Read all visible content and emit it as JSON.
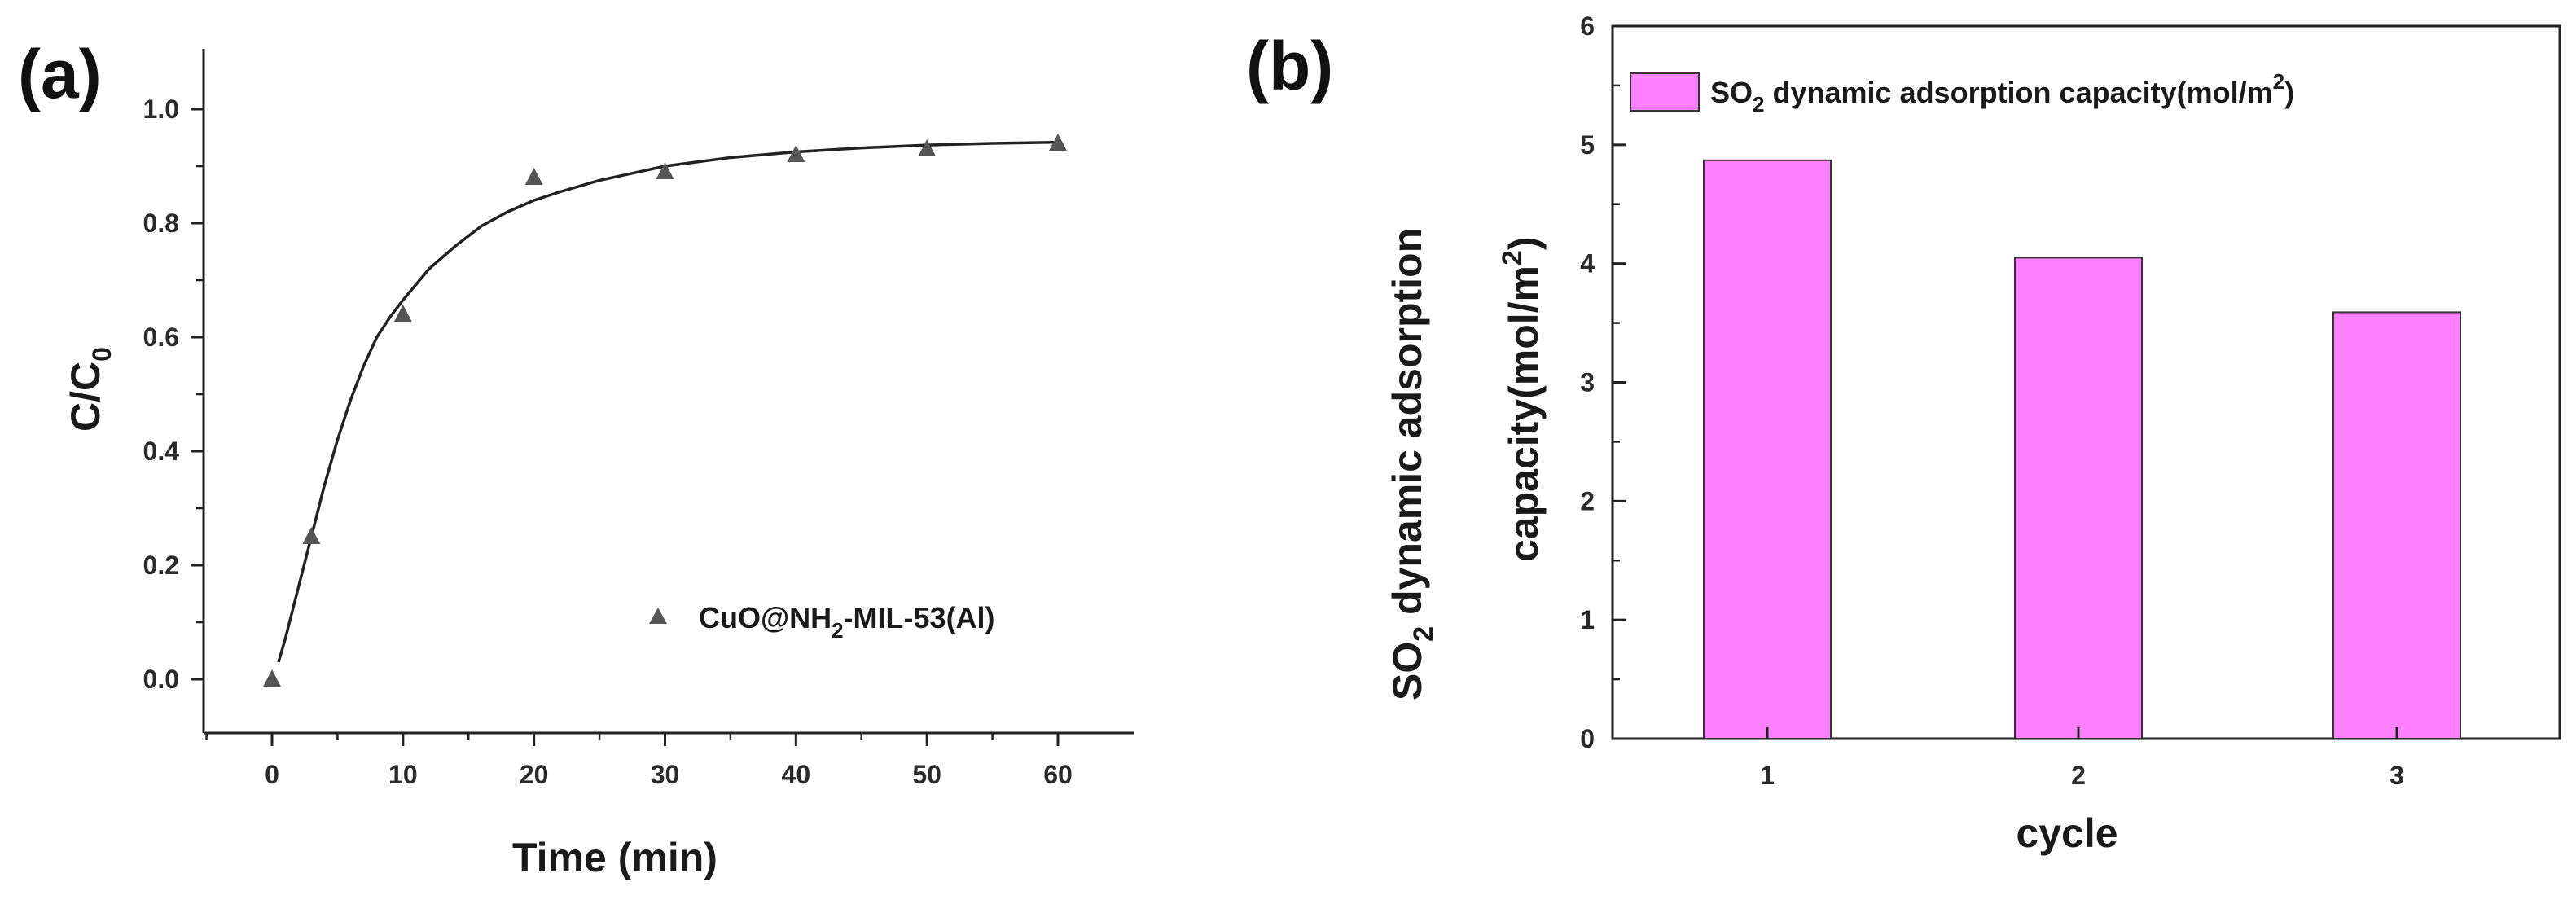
{
  "chart_data": [
    {
      "panel": "(a)",
      "type": "scatter",
      "xlabel": "Time (min)",
      "ylabel_main": "C/C",
      "ylabel_sub": "0",
      "xlim": [
        -5,
        65
      ],
      "ylim": [
        -0.1,
        1.1
      ],
      "xticks": [
        "0",
        "10",
        "20",
        "30",
        "40",
        "50",
        "60"
      ],
      "yticks": [
        "0.0",
        "0.2",
        "0.4",
        "0.6",
        "0.8",
        "1.0"
      ],
      "series": [
        {
          "name_pre": "CuO@NH",
          "name_sub": "2",
          "name_post": "-MIL-53(Al)",
          "marker": "triangle",
          "color": "#555555",
          "x": [
            0,
            3,
            10,
            20,
            30,
            40,
            50,
            60
          ],
          "y": [
            0.0,
            0.25,
            0.64,
            0.88,
            0.89,
            0.92,
            0.93,
            0.94
          ]
        }
      ],
      "fit_curve": {
        "description": "smooth fitted line",
        "x": [
          0.5,
          1,
          2,
          3,
          4,
          5,
          6,
          7,
          8,
          9,
          10,
          12,
          14,
          16,
          18,
          20,
          22,
          25,
          30,
          35,
          40,
          45,
          50,
          55,
          60
        ],
        "y": [
          0.03,
          0.07,
          0.16,
          0.25,
          0.34,
          0.42,
          0.49,
          0.55,
          0.6,
          0.635,
          0.665,
          0.72,
          0.76,
          0.795,
          0.82,
          0.84,
          0.855,
          0.875,
          0.9,
          0.915,
          0.925,
          0.932,
          0.937,
          0.94,
          0.942
        ]
      }
    },
    {
      "panel": "(b)",
      "type": "bar",
      "xlabel": "cycle",
      "ylabel_line1_pre": "SO",
      "ylabel_line1_sub": "2",
      "ylabel_line1_post": " dynamic adsorption",
      "ylabel_line2_pre": "capacity(mol/m",
      "ylabel_line2_sup": "2",
      "ylabel_line2_post": ")",
      "categories": [
        "1",
        "2",
        "3"
      ],
      "values": [
        4.87,
        4.05,
        3.59
      ],
      "ylim": [
        0,
        6
      ],
      "yticks": [
        "0",
        "1",
        "2",
        "3",
        "4",
        "5",
        "6"
      ],
      "legend_pre": "SO",
      "legend_sub": "2",
      "legend_mid": " dynamic adsorption capacity(mol/m",
      "legend_sup": "2",
      "legend_post": ")",
      "bar_color": "#ff80ff",
      "bar_edge": "#333333"
    }
  ]
}
